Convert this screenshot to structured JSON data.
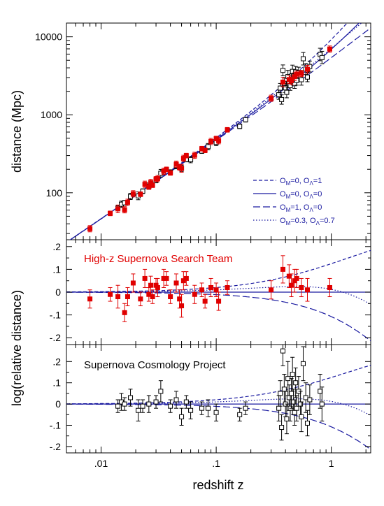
{
  "chart_data": [
    {
      "type": "scatter",
      "panel": "top",
      "ylabel": "distance (Mpc)",
      "log_x": true,
      "log_y": true,
      "xlim": [
        0.005,
        2.2
      ],
      "ylim": [
        25,
        15000
      ],
      "y_ticks": [
        {
          "value": 100,
          "label": "100"
        },
        {
          "value": 1000,
          "label": "1000"
        },
        {
          "value": 10000,
          "label": "10000"
        }
      ],
      "legend": [
        {
          "name": "O",
          "label_parts": [
            "O",
            "M",
            "=0, O",
            "Λ",
            "=1"
          ],
          "dash": "5,3"
        },
        {
          "name": "O",
          "label_parts": [
            "O",
            "M",
            "=0, O",
            "Λ",
            "=0"
          ],
          "dash": ""
        },
        {
          "name": "O",
          "label_parts": [
            "O",
            "M",
            "=1, O",
            "Λ",
            "=0"
          ],
          "dash": "10,4"
        },
        {
          "name": "O",
          "label_parts": [
            "O",
            "M",
            "=0.3, O",
            "Λ",
            "=0.7"
          ],
          "dash": "1.5,2.5"
        }
      ],
      "models": [
        {
          "om": 0,
          "ol": 1,
          "dash": "5,3"
        },
        {
          "om": 0,
          "ol": 0,
          "dash": ""
        },
        {
          "om": 1,
          "ol": 0,
          "dash": "10,4"
        },
        {
          "om": 0.3,
          "ol": 0.7,
          "dash": "1.5,2.5"
        }
      ],
      "series_styles": {
        "high_z": {
          "color": "#e00000",
          "marker": "filled-square"
        },
        "scp": {
          "color": "#000000",
          "marker": "open-square"
        }
      }
    },
    {
      "type": "scatter",
      "panel": "middle",
      "title": "High-z Supernova Search Team",
      "ylim": [
        -0.23,
        0.23
      ],
      "y_ticks": [
        {
          "value": 0.2,
          "label": ".2"
        },
        {
          "value": 0.1,
          "label": ".1"
        },
        {
          "value": 0,
          "label": "0"
        },
        {
          "value": -0.1,
          "label": "-.1"
        },
        {
          "value": -0.2,
          "label": "-.2"
        }
      ],
      "series": [
        {
          "color": "#e00000",
          "marker": "filled-square",
          "points": [
            {
              "z": 0.008,
              "y": -0.03,
              "err": 0.04
            },
            {
              "z": 0.012,
              "y": -0.01,
              "err": 0.03
            },
            {
              "z": 0.014,
              "y": -0.02,
              "err": 0.05
            },
            {
              "z": 0.016,
              "y": -0.09,
              "err": 0.04
            },
            {
              "z": 0.017,
              "y": -0.02,
              "err": 0.04
            },
            {
              "z": 0.019,
              "y": 0.04,
              "err": 0.04
            },
            {
              "z": 0.022,
              "y": -0.03,
              "err": 0.03
            },
            {
              "z": 0.024,
              "y": 0.06,
              "err": 0.04
            },
            {
              "z": 0.026,
              "y": -0.01,
              "err": 0.03
            },
            {
              "z": 0.027,
              "y": 0.03,
              "err": 0.04
            },
            {
              "z": 0.028,
              "y": -0.02,
              "err": 0.03
            },
            {
              "z": 0.03,
              "y": 0.03,
              "err": 0.03
            },
            {
              "z": 0.031,
              "y": 0.02,
              "err": 0.04
            },
            {
              "z": 0.035,
              "y": 0.06,
              "err": 0.04
            },
            {
              "z": 0.037,
              "y": 0.06,
              "err": 0.03
            },
            {
              "z": 0.04,
              "y": -0.02,
              "err": 0.03
            },
            {
              "z": 0.045,
              "y": 0.04,
              "err": 0.04
            },
            {
              "z": 0.048,
              "y": -0.03,
              "err": 0.04
            },
            {
              "z": 0.05,
              "y": -0.06,
              "err": 0.05
            },
            {
              "z": 0.052,
              "y": 0.05,
              "err": 0.04
            },
            {
              "z": 0.055,
              "y": 0.06,
              "err": 0.03
            },
            {
              "z": 0.065,
              "y": -0.01,
              "err": 0.04
            },
            {
              "z": 0.075,
              "y": 0.01,
              "err": 0.03
            },
            {
              "z": 0.08,
              "y": -0.04,
              "err": 0.03
            },
            {
              "z": 0.09,
              "y": 0.02,
              "err": 0.04
            },
            {
              "z": 0.1,
              "y": 0.01,
              "err": 0.03
            },
            {
              "z": 0.105,
              "y": -0.04,
              "err": 0.04
            },
            {
              "z": 0.125,
              "y": 0.02,
              "err": 0.03
            },
            {
              "z": 0.3,
              "y": 0.01,
              "err": 0.04
            },
            {
              "z": 0.38,
              "y": 0.1,
              "err": 0.06
            },
            {
              "z": 0.43,
              "y": 0.07,
              "err": 0.05
            },
            {
              "z": 0.45,
              "y": 0.03,
              "err": 0.05
            },
            {
              "z": 0.48,
              "y": 0.05,
              "err": 0.05
            },
            {
              "z": 0.5,
              "y": 0.06,
              "err": 0.04
            },
            {
              "z": 0.55,
              "y": 0.02,
              "err": 0.04
            },
            {
              "z": 0.62,
              "y": 0.01,
              "err": 0.05
            },
            {
              "z": 0.97,
              "y": 0.02,
              "err": 0.04
            }
          ]
        }
      ]
    },
    {
      "type": "scatter",
      "panel": "bottom",
      "title": "Supernova Cosmology Project",
      "xlabel": "redshift z",
      "ylim": [
        -0.23,
        0.28
      ],
      "x_ticks": [
        {
          "value": 0.01,
          "label": ".01"
        },
        {
          "value": 0.1,
          "label": ".1"
        },
        {
          "value": 1,
          "label": "1"
        }
      ],
      "y_ticks": [
        {
          "value": 0.2,
          "label": ".2"
        },
        {
          "value": 0.1,
          "label": ".1"
        },
        {
          "value": 0,
          "label": "0"
        },
        {
          "value": -0.1,
          "label": "-.1"
        },
        {
          "value": -0.2,
          "label": "-.2"
        }
      ],
      "series": [
        {
          "color": "#000000",
          "marker": "open-square",
          "points": [
            {
              "z": 0.014,
              "y": -0.01,
              "err": 0.03
            },
            {
              "z": 0.015,
              "y": 0.01,
              "err": 0.04
            },
            {
              "z": 0.016,
              "y": 0.0,
              "err": 0.03
            },
            {
              "z": 0.018,
              "y": 0.03,
              "err": 0.04
            },
            {
              "z": 0.021,
              "y": -0.03,
              "err": 0.05
            },
            {
              "z": 0.023,
              "y": -0.01,
              "err": 0.03
            },
            {
              "z": 0.026,
              "y": 0.0,
              "err": 0.04
            },
            {
              "z": 0.03,
              "y": 0.01,
              "err": 0.03
            },
            {
              "z": 0.033,
              "y": 0.06,
              "err": 0.05
            },
            {
              "z": 0.04,
              "y": -0.01,
              "err": 0.03
            },
            {
              "z": 0.045,
              "y": 0.02,
              "err": 0.04
            },
            {
              "z": 0.05,
              "y": -0.06,
              "err": 0.04
            },
            {
              "z": 0.055,
              "y": 0.01,
              "err": 0.03
            },
            {
              "z": 0.06,
              "y": -0.03,
              "err": 0.04
            },
            {
              "z": 0.075,
              "y": -0.02,
              "err": 0.03
            },
            {
              "z": 0.085,
              "y": -0.02,
              "err": 0.04
            },
            {
              "z": 0.1,
              "y": -0.04,
              "err": 0.04
            },
            {
              "z": 0.16,
              "y": -0.05,
              "err": 0.03
            },
            {
              "z": 0.18,
              "y": -0.02,
              "err": 0.03
            },
            {
              "z": 0.35,
              "y": -0.02,
              "err": 0.06
            },
            {
              "z": 0.36,
              "y": 0.05,
              "err": 0.06
            },
            {
              "z": 0.37,
              "y": -0.11,
              "err": 0.06
            },
            {
              "z": 0.38,
              "y": 0.25,
              "err": 0.07
            },
            {
              "z": 0.39,
              "y": 0.07,
              "err": 0.07
            },
            {
              "z": 0.4,
              "y": 0.0,
              "err": 0.06
            },
            {
              "z": 0.41,
              "y": -0.07,
              "err": 0.07
            },
            {
              "z": 0.42,
              "y": 0.12,
              "err": 0.08
            },
            {
              "z": 0.43,
              "y": 0.03,
              "err": 0.06
            },
            {
              "z": 0.44,
              "y": -0.02,
              "err": 0.06
            },
            {
              "z": 0.45,
              "y": 0.05,
              "err": 0.07
            },
            {
              "z": 0.46,
              "y": 0.14,
              "err": 0.08
            },
            {
              "z": 0.47,
              "y": 0.01,
              "err": 0.06
            },
            {
              "z": 0.48,
              "y": -0.04,
              "err": 0.06
            },
            {
              "z": 0.49,
              "y": 0.1,
              "err": 0.07
            },
            {
              "z": 0.5,
              "y": -0.02,
              "err": 0.06
            },
            {
              "z": 0.52,
              "y": 0.06,
              "err": 0.07
            },
            {
              "z": 0.54,
              "y": 0.0,
              "err": 0.06
            },
            {
              "z": 0.55,
              "y": -0.06,
              "err": 0.07
            },
            {
              "z": 0.57,
              "y": 0.19,
              "err": 0.08
            },
            {
              "z": 0.6,
              "y": 0.03,
              "err": 0.07
            },
            {
              "z": 0.62,
              "y": -0.09,
              "err": 0.06
            },
            {
              "z": 0.65,
              "y": 0.02,
              "err": 0.07
            },
            {
              "z": 0.8,
              "y": 0.06,
              "err": 0.08
            },
            {
              "z": 0.83,
              "y": 0.0,
              "err": 0.08
            }
          ]
        }
      ]
    }
  ]
}
